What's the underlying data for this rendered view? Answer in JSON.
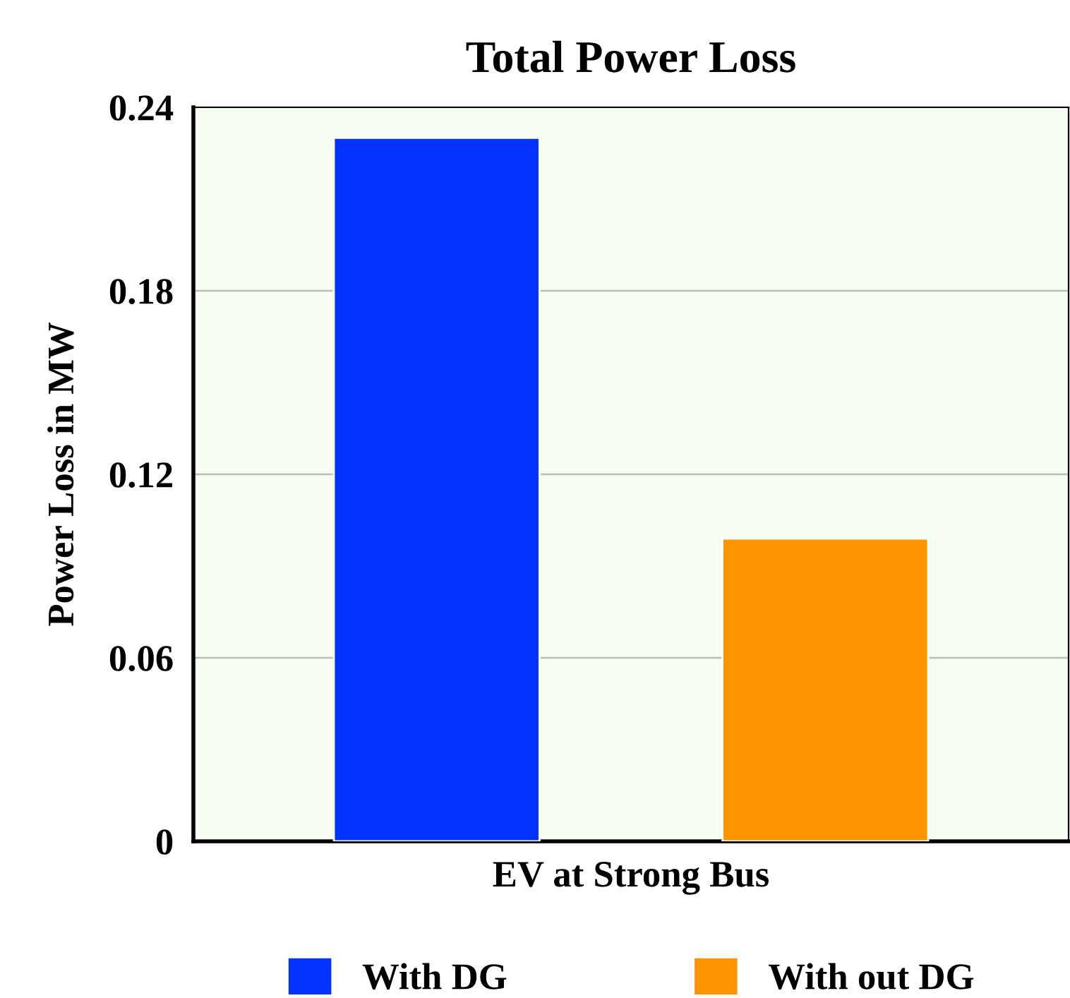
{
  "chart_data": {
    "type": "bar",
    "title": "Total Power Loss",
    "ylabel": "Power Loss in MW",
    "categories": [
      "EV at Strong Bus"
    ],
    "series": [
      {
        "name": "With DG",
        "color": "#0433ff",
        "values": [
          0.23
        ]
      },
      {
        "name": "With out DG",
        "color": "#ff9300",
        "values": [
          0.099
        ]
      }
    ],
    "ylim": [
      0,
      0.24
    ],
    "yticks": [
      {
        "value": 0,
        "label": "0"
      },
      0.06,
      0.12,
      0.18,
      0.24
    ],
    "grid": "y",
    "legend": "bottom"
  }
}
